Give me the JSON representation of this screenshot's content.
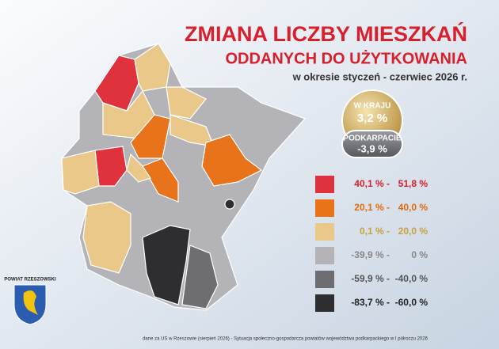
{
  "header": {
    "title_line1": "ZMIANA LICZBY MIESZKAŃ",
    "title_line2": "ODDANYCH DO UŻYTKOWANIA",
    "period": "w okresie styczeń - czerwiec 2026 r."
  },
  "badge": {
    "country_label": "W KRAJU",
    "country_value": "3,2 %",
    "region_label": "PODKARPACIE",
    "region_value": "-3,9 %"
  },
  "legend": [
    {
      "color": "#e0323c",
      "text_color": "#d8202c",
      "from": "40,1 % -",
      "to": "51,8 %"
    },
    {
      "color": "#e8731a",
      "text_color": "#e06a10",
      "from": "20,1 % -",
      "to": "40,0 %"
    },
    {
      "color": "#e9c88a",
      "text_color": "#c9a040",
      "from": "0,1 % -",
      "to": "20,0 %"
    },
    {
      "color": "#b4b4b8",
      "text_color": "#888",
      "from": "-39,9 % -",
      "to": "0 %"
    },
    {
      "color": "#6e6e72",
      "text_color": "#555",
      "from": "-59,9 % -",
      "to": "-40,0 %"
    },
    {
      "color": "#2e2e30",
      "text_color": "#222",
      "from": "-83,7 % -",
      "to": "-60,0 %"
    }
  ],
  "crest": {
    "label": "POWIAT RZESZOWSKI"
  },
  "footer": {
    "source": "dane za US w Rzeszowie (sierpień 2026) - Sytuacja społeczno-gospodarcza powiatów województwa podkarpackiego w I półroczu 2026"
  }
}
